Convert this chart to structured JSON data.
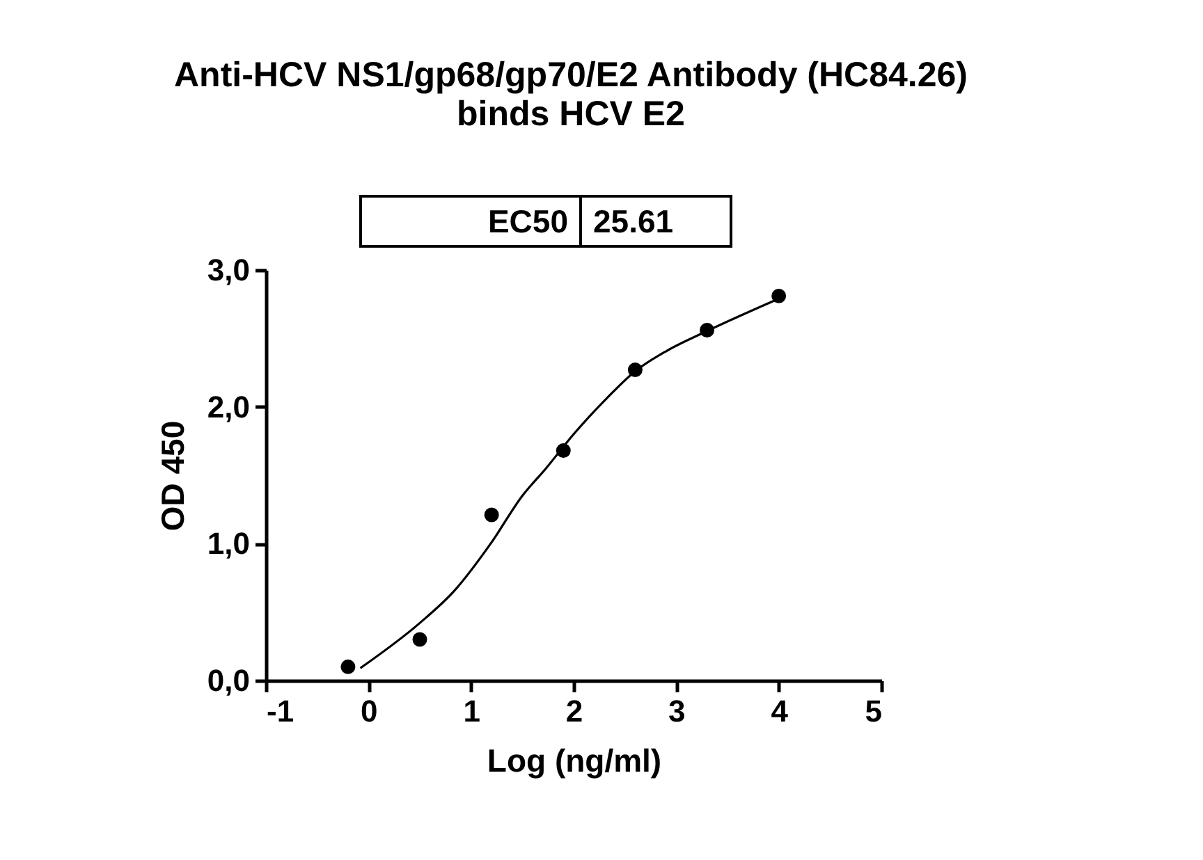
{
  "chart_data": {
    "type": "scatter",
    "title": "Anti-HCV NS1/gp68/gp70/E2 Antibody (HC84.26) binds HCV E2",
    "xlabel": "Log (ng/ml)",
    "ylabel": "OD 450",
    "annotations": [
      "EC50",
      "25.61"
    ],
    "xlim": [
      -1,
      5
    ],
    "xticks": [
      -1,
      0,
      1,
      2,
      3,
      4,
      5
    ],
    "ylim": [
      0,
      3
    ],
    "yticks": [
      {
        "value": 0,
        "label": "0,0"
      },
      {
        "value": 1,
        "label": "1,0"
      },
      {
        "value": 2,
        "label": "2,0"
      },
      {
        "value": 3,
        "label": "3,0"
      }
    ],
    "grid": false,
    "series": [
      {
        "marker": "circle",
        "color": "#000000",
        "x": [
          -0.2,
          0.5,
          1.2,
          1.9,
          2.6,
          3.3,
          4.0
        ],
        "values": [
          0.1,
          0.3,
          1.21,
          1.68,
          2.27,
          2.56,
          2.81
        ]
      },
      {
        "type": "line",
        "color": "#000000",
        "line_style": "solid",
        "x": [
          -0.08,
          0.5,
          0.83,
          1.2,
          1.5,
          1.73,
          2.0,
          2.32,
          2.6,
          2.91,
          3.29,
          4.0
        ],
        "values": [
          0.09,
          0.42,
          0.65,
          1.01,
          1.35,
          1.55,
          1.8,
          2.06,
          2.26,
          2.41,
          2.55,
          2.79
        ]
      }
    ]
  }
}
